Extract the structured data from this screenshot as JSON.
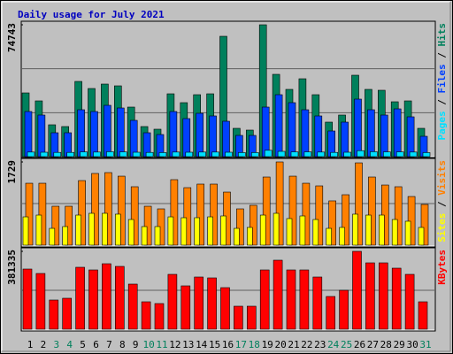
{
  "title": "Daily usage for July 2021",
  "separator": "/",
  "chart_data": [
    {
      "type": "bar",
      "ylim": [
        0,
        74743
      ],
      "yticks": [
        74743
      ],
      "series": [
        {
          "name": "Hits",
          "color": "#00805c",
          "values": [
            36117,
            31602,
            18059,
            17055,
            42638,
            38625,
            41133,
            40131,
            28091,
            17055,
            15550,
            35615,
            30599,
            35113,
            35615,
            68222,
            16052,
            15049,
            74743,
            46651,
            38124,
            44143,
            35113,
            19563,
            23577,
            46150,
            38124,
            37622,
            31101,
            31602,
            16052
          ]
        },
        {
          "name": "Files",
          "color": "#0040ff",
          "values": [
            25582,
            23575,
            13543,
            13543,
            26585,
            25582,
            29093,
            27588,
            20566,
            13543,
            12540,
            25582,
            21569,
            24578,
            23074,
            20064,
            12038,
            12038,
            28090,
            35112,
            30598,
            26585,
            23074,
            14546,
            19562,
            32604,
            26585,
            23575,
            27086,
            22572,
            11537
          ]
        },
        {
          "name": "Pages",
          "color": "#00e0ff",
          "values": [
            2600,
            2500,
            2400,
            2400,
            2700,
            2600,
            2800,
            2700,
            2500,
            2400,
            2300,
            2600,
            2500,
            2600,
            2600,
            2500,
            2300,
            2300,
            3600,
            3000,
            2700,
            2700,
            2600,
            2400,
            2500,
            3400,
            2800,
            2700,
            2700,
            2600,
            2300
          ]
        }
      ]
    },
    {
      "type": "bar",
      "ylim": [
        0,
        1729
      ],
      "yticks": [
        1729
      ],
      "series": [
        {
          "name": "Visits",
          "color": "#ff8000",
          "values": [
            1287,
            1287,
            809,
            809,
            1342,
            1490,
            1508,
            1434,
            1214,
            809,
            754,
            1361,
            1195,
            1269,
            1269,
            1103,
            754,
            828,
            1416,
            1729,
            1434,
            1287,
            1232,
            920,
            1048,
            1710,
            1416,
            1250,
            1214,
            1011,
            846
          ]
        },
        {
          "name": "Sites",
          "color": "#ffff00",
          "values": [
            588,
            625,
            349,
            386,
            625,
            662,
            662,
            644,
            533,
            386,
            386,
            588,
            570,
            570,
            588,
            607,
            349,
            368,
            625,
            662,
            552,
            607,
            533,
            349,
            368,
            644,
            625,
            625,
            533,
            497,
            368
          ]
        }
      ]
    },
    {
      "type": "bar",
      "ylim": [
        0,
        381335
      ],
      "yticks": [
        381335
      ],
      "categories": [
        "1",
        "2",
        "3",
        "4",
        "5",
        "6",
        "7",
        "8",
        "9",
        "10",
        "11",
        "12",
        "13",
        "14",
        "15",
        "16",
        "17",
        "18",
        "19",
        "20",
        "21",
        "22",
        "23",
        "24",
        "25",
        "26",
        "27",
        "28",
        "29",
        "30",
        "31"
      ],
      "label_colors": [
        "#000000",
        "#000000",
        "#00805c",
        "#00805c",
        "#000000",
        "#000000",
        "#000000",
        "#000000",
        "#000000",
        "#00805c",
        "#00805c",
        "#000000",
        "#000000",
        "#000000",
        "#000000",
        "#000000",
        "#00805c",
        "#00805c",
        "#000000",
        "#000000",
        "#000000",
        "#000000",
        "#000000",
        "#00805c",
        "#00805c",
        "#000000",
        "#000000",
        "#000000",
        "#000000",
        "#000000",
        "#00805c"
      ],
      "series": [
        {
          "name": "KBytes",
          "color": "#ff0000",
          "values": [
            294644,
            272979,
            142989,
            151655,
            303310,
            290311,
            320642,
            307643,
            220983,
            134323,
            125657,
            268646,
            212317,
            255647,
            251314,
            203651,
            112658,
            112658,
            290311,
            337974,
            290311,
            290311,
            255647,
            160321,
            190652,
            381335,
            324975,
            324975,
            298977,
            268646,
            134323
          ]
        }
      ]
    }
  ]
}
